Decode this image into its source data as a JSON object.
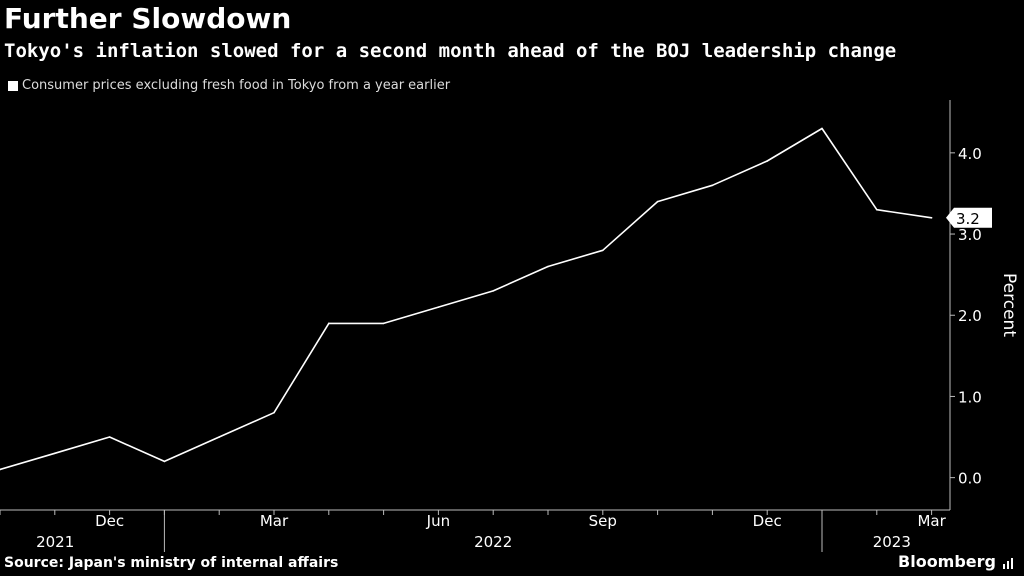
{
  "header": {
    "title": "Further Slowdown",
    "subtitle": "Tokyo's inflation slowed for a second month ahead of the BOJ leadership change"
  },
  "legend": {
    "label": "Consumer prices excluding fresh food in Tokyo from a year earlier"
  },
  "footer": {
    "source": "Source: Japan's ministry of internal affairs",
    "brand": "Bloomberg"
  },
  "colors": {
    "background": "#000000",
    "line": "#ffffff",
    "axis": "#bbbbbb",
    "text": "#ffffff"
  },
  "chart_data": {
    "type": "line",
    "ylabel": "Percent",
    "ylim": [
      -0.3,
      4.7
    ],
    "yticks": [
      "0.0",
      "1.0",
      "2.0",
      "3.0",
      "4.0"
    ],
    "xticks": [
      "Dec",
      "Mar",
      "Jun",
      "Sep",
      "Dec",
      "Mar"
    ],
    "years": [
      "2021",
      "2022",
      "2023"
    ],
    "grid": false,
    "end_label": "3.2",
    "series": [
      {
        "x": [
          "2021-10",
          "2021-11",
          "2021-12",
          "2022-01",
          "2022-02",
          "2022-03",
          "2022-04",
          "2022-05",
          "2022-06",
          "2022-07",
          "2022-08",
          "2022-09",
          "2022-10",
          "2022-11",
          "2022-12",
          "2023-01",
          "2023-02",
          "2023-03"
        ],
        "values": [
          0.1,
          0.3,
          0.5,
          0.2,
          0.5,
          0.8,
          1.9,
          1.9,
          2.1,
          2.3,
          2.6,
          2.8,
          3.4,
          3.6,
          3.9,
          4.3,
          3.3,
          3.2
        ]
      }
    ]
  }
}
